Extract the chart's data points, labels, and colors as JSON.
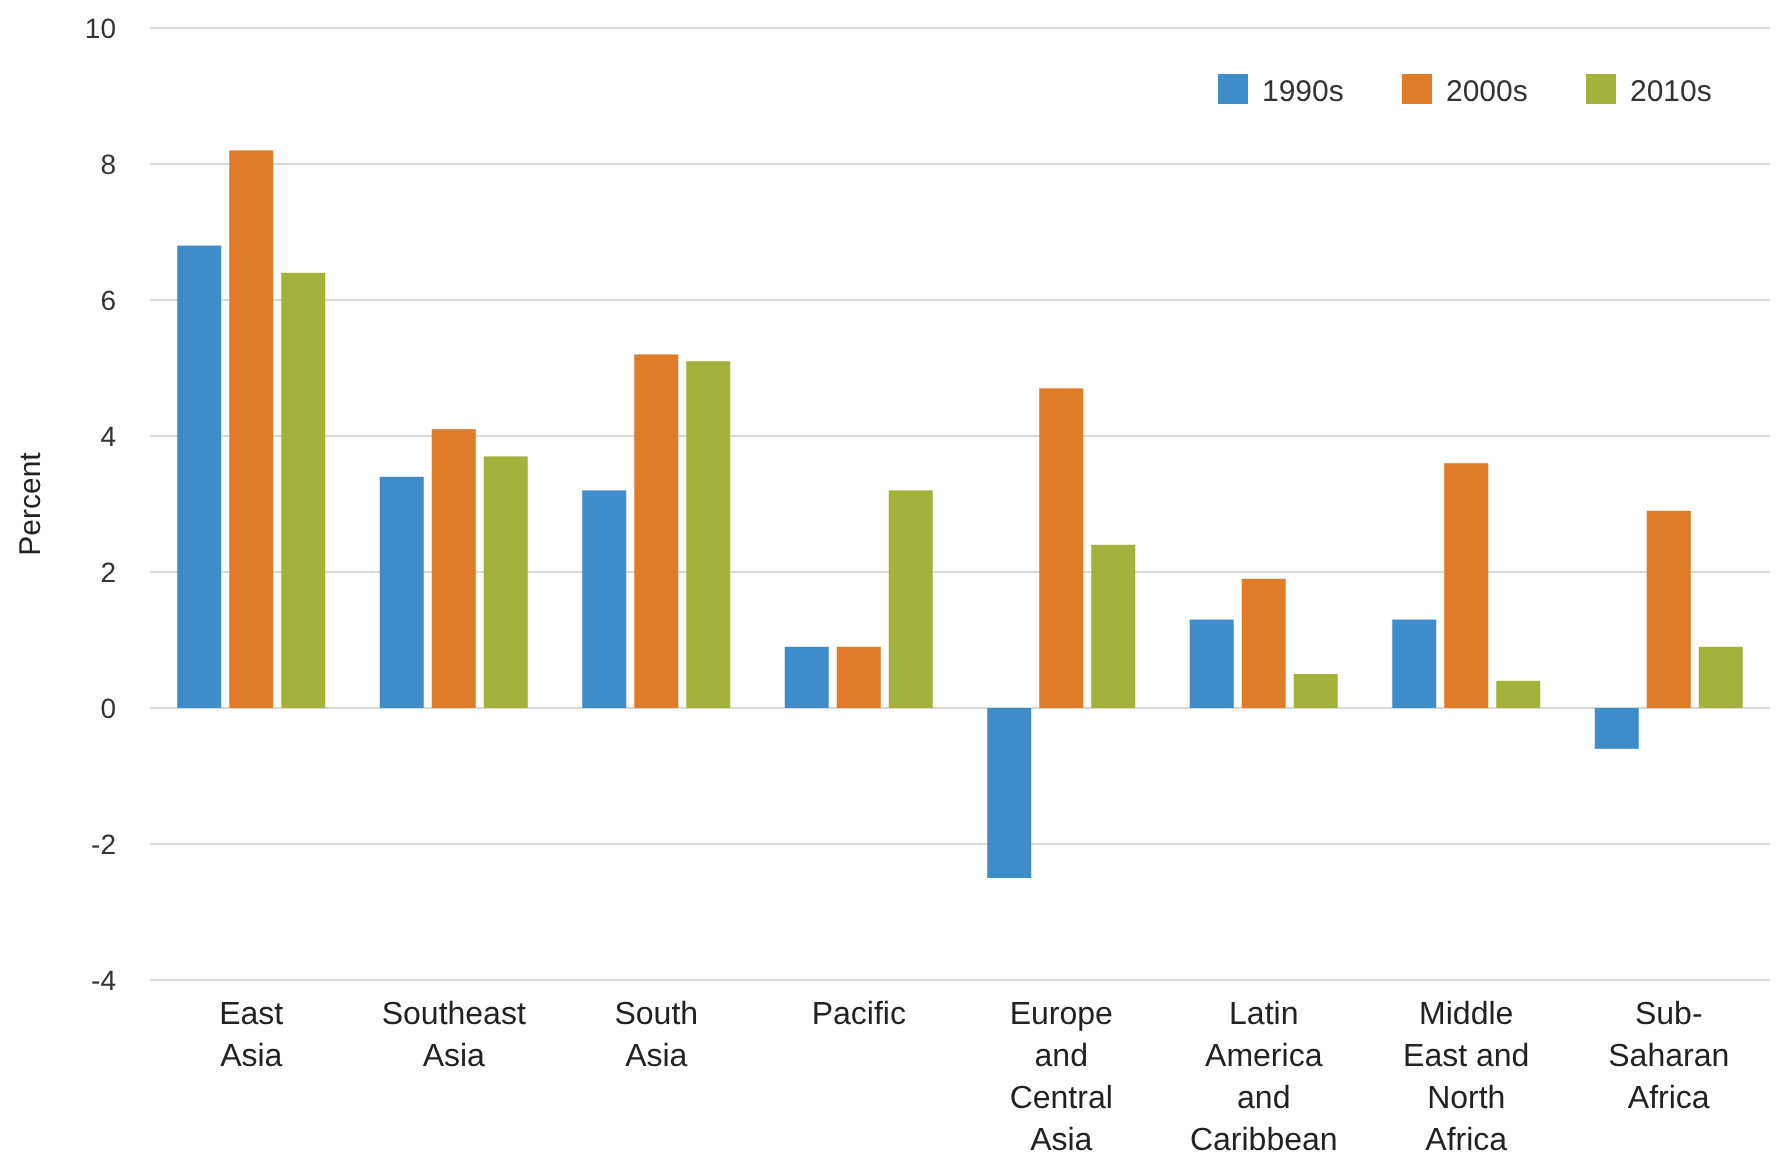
{
  "chart_data": {
    "type": "bar",
    "ylabel": "Percent",
    "categories": [
      "East Asia",
      "Southeast Asia",
      "South Asia",
      "Pacific",
      "Europe and Central Asia",
      "Latin America and Caribbean",
      "Middle East and North Africa",
      "Sub-Saharan Africa"
    ],
    "series": [
      {
        "name": "1990s",
        "color": "#3f8ccb",
        "values": [
          6.8,
          3.4,
          3.2,
          0.9,
          -2.5,
          1.3,
          1.3,
          -0.6
        ]
      },
      {
        "name": "2000s",
        "color": "#e07b27",
        "values": [
          8.2,
          4.1,
          5.2,
          0.9,
          4.7,
          1.9,
          3.6,
          2.9
        ]
      },
      {
        "name": "2010s",
        "color": "#a4b13a",
        "values": [
          6.4,
          3.7,
          5.1,
          3.2,
          2.4,
          0.5,
          0.4,
          0.9
        ]
      }
    ],
    "ylim": [
      -4,
      10
    ],
    "yticks": [
      -4,
      -2,
      0,
      2,
      4,
      6,
      8,
      10
    ],
    "grid": "y",
    "legend": "top right"
  }
}
